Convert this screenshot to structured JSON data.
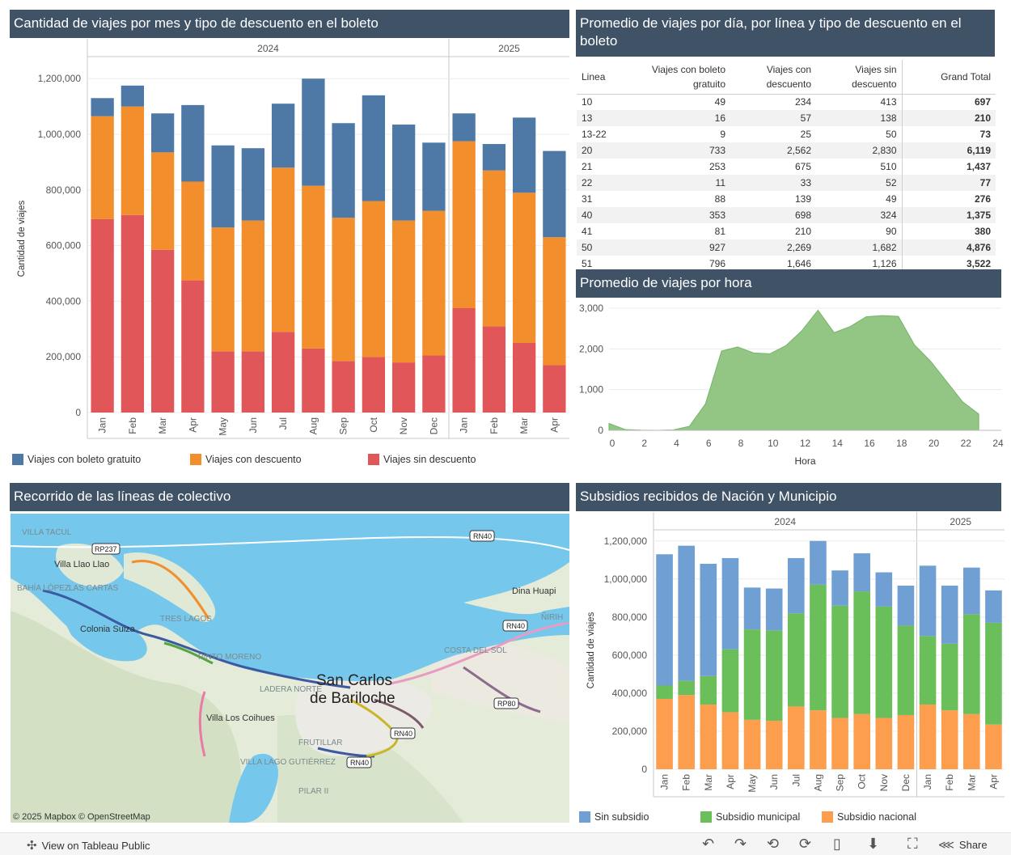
{
  "panels": {
    "trips_by_month": {
      "title": "Cantidad de viajes por mes y tipo de descuento en el boleto",
      "ylabel": "Cantidad de viajes"
    },
    "avg_table": {
      "title": "Promedio de viajes por día, por línea y tipo de descuento en el boleto"
    },
    "avg_hour": {
      "title": "Promedio de viajes por hora",
      "xlabel": "Hora"
    },
    "map": {
      "title": "Recorrido de las líneas de colectivo",
      "attribution": "© 2025 Mapbox  © OpenStreetMap"
    },
    "subsidies": {
      "title": "Subsidios recibidos de Nación y Municipio",
      "ylabel": "Cantidad de viajes"
    }
  },
  "legend1": [
    {
      "label": "Viajes con boleto gratuito",
      "color": "#4e79a7"
    },
    {
      "label": "Viajes con descuento",
      "color": "#f28e2b"
    },
    {
      "label": "Viajes sin descuento",
      "color": "#e15759"
    }
  ],
  "legend2": [
    {
      "label": "Sin subsidio",
      "color": "#6f9fd3"
    },
    {
      "label": "Subsidio municipal",
      "color": "#6abf5a"
    },
    {
      "label": "Subsidio nacional",
      "color": "#fd9e4e"
    }
  ],
  "table": {
    "headers": [
      "Linea",
      "Viajes con boleto gratuito",
      "Viajes con descuento",
      "Viajes sin descuento",
      "Grand Total"
    ],
    "rows": [
      [
        "10",
        "49",
        "234",
        "413",
        "697"
      ],
      [
        "13",
        "16",
        "57",
        "138",
        "210"
      ],
      [
        "13-22",
        "9",
        "25",
        "50",
        "73"
      ],
      [
        "20",
        "733",
        "2,562",
        "2,830",
        "6,119"
      ],
      [
        "21",
        "253",
        "675",
        "510",
        "1,437"
      ],
      [
        "22",
        "11",
        "33",
        "52",
        "77"
      ],
      [
        "31",
        "88",
        "139",
        "49",
        "276"
      ],
      [
        "40",
        "353",
        "698",
        "324",
        "1,375"
      ],
      [
        "41",
        "81",
        "210",
        "90",
        "380"
      ],
      [
        "50",
        "927",
        "2,269",
        "1,682",
        "4,876"
      ],
      [
        "51",
        "796",
        "1,646",
        "1,126",
        "3,522"
      ]
    ]
  },
  "map_labels": {
    "villa_tacul": "VILLA TACUL",
    "llao_llao": "Villa Llao Llao",
    "bahia_lopez": "BAHÍA LÓPEZ",
    "las_cartas": "LAS CARTAS",
    "colonia_suiza": "Colonia Suiza",
    "tres_lagos": "TRES LAGOS",
    "pinto_moreno": "PINTO MORENO",
    "ladera_norte": "LADERA NORTE",
    "san_carlos": "San Carlos",
    "de_bariloche": "de Bariloche",
    "villa_los_coihues": "Villa Los Coihues",
    "villa_lago_gutierrez": "VILLA LAGO GUTIÉRREZ",
    "pilar_ii": "PILAR II",
    "frutillar": "FRUTILLAR",
    "costa_del_sol": "COSTA DEL SOL",
    "dina_huapi": "Dina Huapi",
    "nirihuau": "ÑIRIH",
    "rn40": "RN40",
    "rp237": "RP237",
    "rp80": "RP80"
  },
  "footer": {
    "view_label": "View on Tableau Public",
    "share_label": "Share"
  },
  "chart_data": [
    {
      "type": "bar",
      "stacked": true,
      "title": "Cantidad de viajes por mes y tipo de descuento en el boleto",
      "ylabel": "Cantidad de viajes",
      "ylim": [
        0,
        1250000
      ],
      "yticks": [
        0,
        200000,
        400000,
        600000,
        800000,
        1000000,
        1200000
      ],
      "ytick_labels": [
        "0",
        "200,000",
        "400,000",
        "600,000",
        "800,000",
        "1,000,000",
        "1,200,000"
      ],
      "groups": [
        {
          "label": "2024",
          "count": 12
        },
        {
          "label": "2025",
          "count": 4
        }
      ],
      "categories": [
        "Jan",
        "Feb",
        "Mar",
        "Apr",
        "May",
        "Jun",
        "Jul",
        "Aug",
        "Sep",
        "Oct",
        "Nov",
        "Dec",
        "Jan",
        "Feb",
        "Mar",
        "Apr"
      ],
      "series": [
        {
          "name": "Viajes sin descuento",
          "color": "#e15759",
          "values": [
            695000,
            710000,
            585000,
            475000,
            220000,
            220000,
            290000,
            230000,
            185000,
            200000,
            180000,
            205000,
            375000,
            310000,
            250000,
            170000
          ]
        },
        {
          "name": "Viajes con descuento",
          "color": "#f28e2b",
          "values": [
            370000,
            390000,
            350000,
            355000,
            445000,
            470000,
            590000,
            585000,
            515000,
            560000,
            510000,
            520000,
            600000,
            560000,
            540000,
            460000
          ]
        },
        {
          "name": "Viajes con boleto gratuito",
          "color": "#4e79a7",
          "values": [
            65000,
            75000,
            140000,
            275000,
            295000,
            260000,
            230000,
            385000,
            340000,
            380000,
            345000,
            245000,
            100000,
            95000,
            270000,
            310000
          ]
        }
      ]
    },
    {
      "type": "area",
      "title": "Promedio de viajes por hora",
      "xlabel": "Hora",
      "xlim": [
        0,
        24
      ],
      "ylim": [
        0,
        3100
      ],
      "xticks": [
        0,
        2,
        4,
        6,
        8,
        10,
        12,
        14,
        16,
        18,
        20,
        22,
        24
      ],
      "yticks": [
        0,
        1000,
        2000,
        3000
      ],
      "ytick_labels": [
        "0",
        "1,000",
        "2,000",
        "3,000"
      ],
      "x": [
        0,
        1,
        2,
        3,
        4,
        5,
        6,
        7,
        8,
        9,
        10,
        11,
        12,
        13,
        14,
        15,
        16,
        17,
        18,
        19,
        20,
        21,
        22,
        23
      ],
      "values": [
        170,
        20,
        5,
        0,
        10,
        100,
        650,
        1950,
        2050,
        1900,
        1880,
        2080,
        2450,
        2950,
        2400,
        2550,
        2790,
        2820,
        2800,
        2100,
        1700,
        1200,
        700,
        400
      ],
      "color": "#74b566"
    },
    {
      "type": "bar",
      "stacked": true,
      "title": "Subsidios recibidos de Nación y Municipio",
      "ylabel": "Cantidad de viajes",
      "ylim": [
        0,
        1250000
      ],
      "yticks": [
        0,
        200000,
        400000,
        600000,
        800000,
        1000000,
        1200000
      ],
      "ytick_labels": [
        "0",
        "200,000",
        "400,000",
        "600,000",
        "800,000",
        "1,000,000",
        "1,200,000"
      ],
      "groups": [
        {
          "label": "2024",
          "count": 12
        },
        {
          "label": "2025",
          "count": 4
        }
      ],
      "categories": [
        "Jan",
        "Feb",
        "Mar",
        "Apr",
        "May",
        "Jun",
        "Jul",
        "Aug",
        "Sep",
        "Oct",
        "Nov",
        "Dec",
        "Jan",
        "Feb",
        "Mar",
        "Apr"
      ],
      "series": [
        {
          "name": "Subsidio nacional",
          "color": "#fd9e4e",
          "values": [
            370000,
            390000,
            340000,
            300000,
            260000,
            255000,
            330000,
            310000,
            270000,
            290000,
            270000,
            285000,
            340000,
            310000,
            290000,
            235000
          ]
        },
        {
          "name": "Subsidio municipal",
          "color": "#6abf5a",
          "values": [
            70000,
            75000,
            150000,
            330000,
            475000,
            475000,
            490000,
            660000,
            590000,
            645000,
            585000,
            470000,
            360000,
            350000,
            525000,
            535000
          ]
        },
        {
          "name": "Sin subsidio",
          "color": "#6f9fd3",
          "values": [
            690000,
            710000,
            590000,
            480000,
            220000,
            220000,
            290000,
            230000,
            185000,
            200000,
            180000,
            210000,
            370000,
            305000,
            245000,
            170000
          ]
        }
      ]
    }
  ]
}
